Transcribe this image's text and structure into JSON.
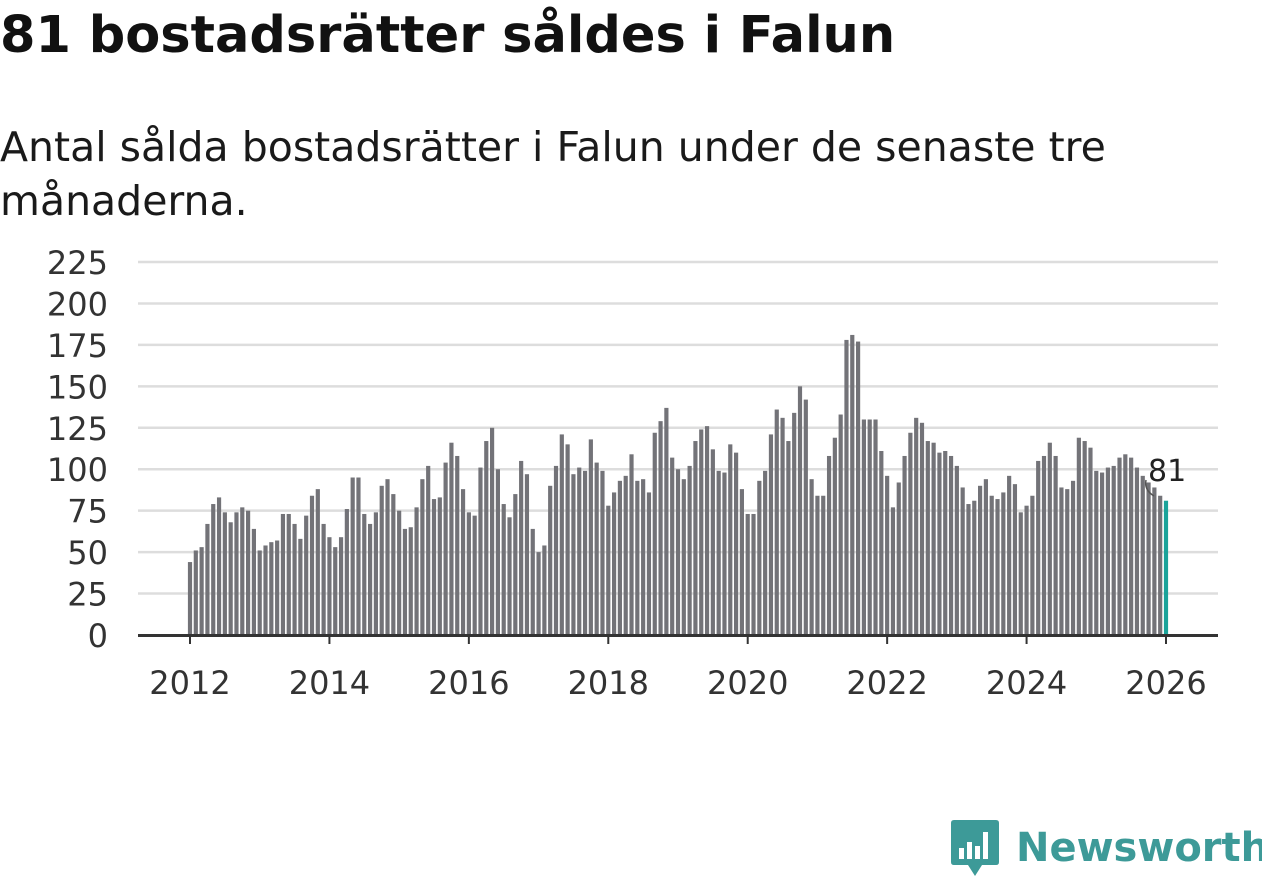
{
  "title": "81 bostadsrätter såldes i Falun",
  "subtitle": "Antal sålda bostadsrätter i Falun under de senaste tre månaderna.",
  "logo": {
    "text": "Newsworthy",
    "icon": "newsworthy-bar-chart-icon"
  },
  "colors": {
    "bar": "#737378",
    "highlight": "#1aa39a",
    "grid": "#dddddd",
    "axis": "#333333",
    "brand": "#3d9a98"
  },
  "chart_data": {
    "type": "bar",
    "title": "81 bostadsrätter såldes i Falun",
    "xlabel": "",
    "ylabel": "",
    "ylim": [
      0,
      225
    ],
    "yticks": [
      "0",
      "25",
      "50",
      "75",
      "100",
      "125",
      "150",
      "175",
      "200",
      "225"
    ],
    "xticks": [
      "2012",
      "2014",
      "2016",
      "2018",
      "2020",
      "2022",
      "2024",
      "2026"
    ],
    "x_start": "2012-01",
    "highlight_label": "81",
    "values": [
      44,
      51,
      53,
      67,
      79,
      83,
      74,
      68,
      74,
      77,
      75,
      64,
      51,
      54,
      56,
      57,
      73,
      73,
      67,
      58,
      72,
      84,
      88,
      67,
      59,
      53,
      59,
      76,
      95,
      95,
      73,
      67,
      74,
      90,
      94,
      85,
      75,
      64,
      65,
      77,
      94,
      102,
      82,
      83,
      104,
      116,
      108,
      88,
      74,
      72,
      101,
      117,
      125,
      100,
      79,
      71,
      85,
      105,
      97,
      64,
      50,
      54,
      90,
      102,
      121,
      115,
      97,
      101,
      99,
      118,
      104,
      99,
      78,
      86,
      93,
      96,
      109,
      93,
      94,
      86,
      122,
      129,
      137,
      107,
      100,
      94,
      102,
      117,
      124,
      126,
      112,
      99,
      98,
      115,
      110,
      88,
      73,
      73,
      93,
      99,
      121,
      136,
      131,
      117,
      134,
      150,
      142,
      94,
      84,
      84,
      108,
      119,
      133,
      178,
      181,
      177,
      130,
      130,
      130,
      111,
      96,
      77,
      92,
      108,
      122,
      131,
      128,
      117,
      116,
      110,
      111,
      108,
      102,
      89,
      79,
      81,
      90,
      94,
      84,
      82,
      86,
      96,
      91,
      74,
      78,
      84,
      105,
      108,
      116,
      108,
      89,
      88,
      93,
      119,
      117,
      113,
      99,
      98,
      101,
      102,
      107,
      109,
      107,
      101,
      96,
      92,
      89,
      84,
      81
    ]
  }
}
